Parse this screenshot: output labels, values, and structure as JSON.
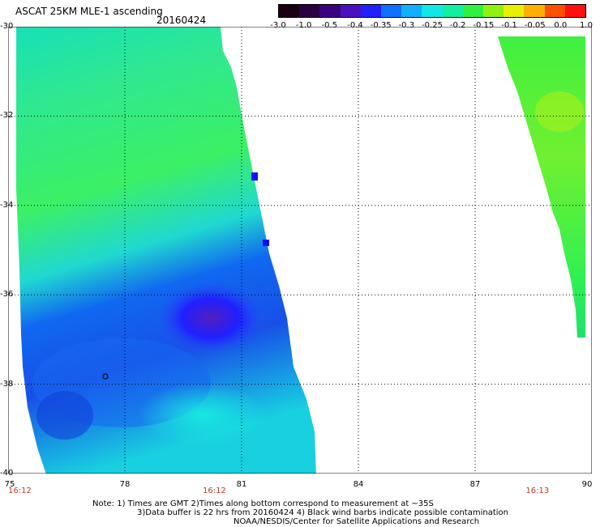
{
  "header": {
    "title": "ASCAT 25KM MLE-1 ascending",
    "date": "20160424"
  },
  "colorbar": {
    "labels": [
      "-3.0",
      "-1.0",
      "-0.5",
      "-0.4",
      "-0.35",
      "-0.3",
      "-0.25",
      "-0.2",
      "-0.15",
      "-0.1",
      "-0.05",
      "0.0",
      "1.0"
    ],
    "colors": [
      "#1a0010",
      "#2a0040",
      "#3a0080",
      "#4a10c0",
      "#2020ff",
      "#1070ff",
      "#10b0ff",
      "#10e8e8",
      "#10f0a0",
      "#30f040",
      "#90f010",
      "#e8f000",
      "#ffb000",
      "#ff5000",
      "#ff1010"
    ]
  },
  "map": {
    "lat_labels": [
      "-30",
      "-32",
      "-34",
      "-36",
      "-38",
      "-40"
    ],
    "lon_labels": [
      "75",
      "78",
      "81",
      "84",
      "87",
      "90"
    ],
    "time_labels": [
      {
        "text": "16:12",
        "lon": 75.3
      },
      {
        "text": "16:12",
        "lon": 80.3
      },
      {
        "text": "16:13",
        "lon": 88.6
      }
    ],
    "lat_range": [
      -40,
      -30
    ],
    "lon_range": [
      75,
      90
    ],
    "grid": "dotted"
  },
  "notes": {
    "line1": "Note: 1) Times are GMT 2)Times along bottom correspond to measurement at ~35S",
    "line2": "3)Data buffer is 22 hrs from 20160424 4) Black wind barbs indicate possible contamination",
    "line3": "NOAA/NESDIS/Center for Satellite Applications and Research"
  }
}
